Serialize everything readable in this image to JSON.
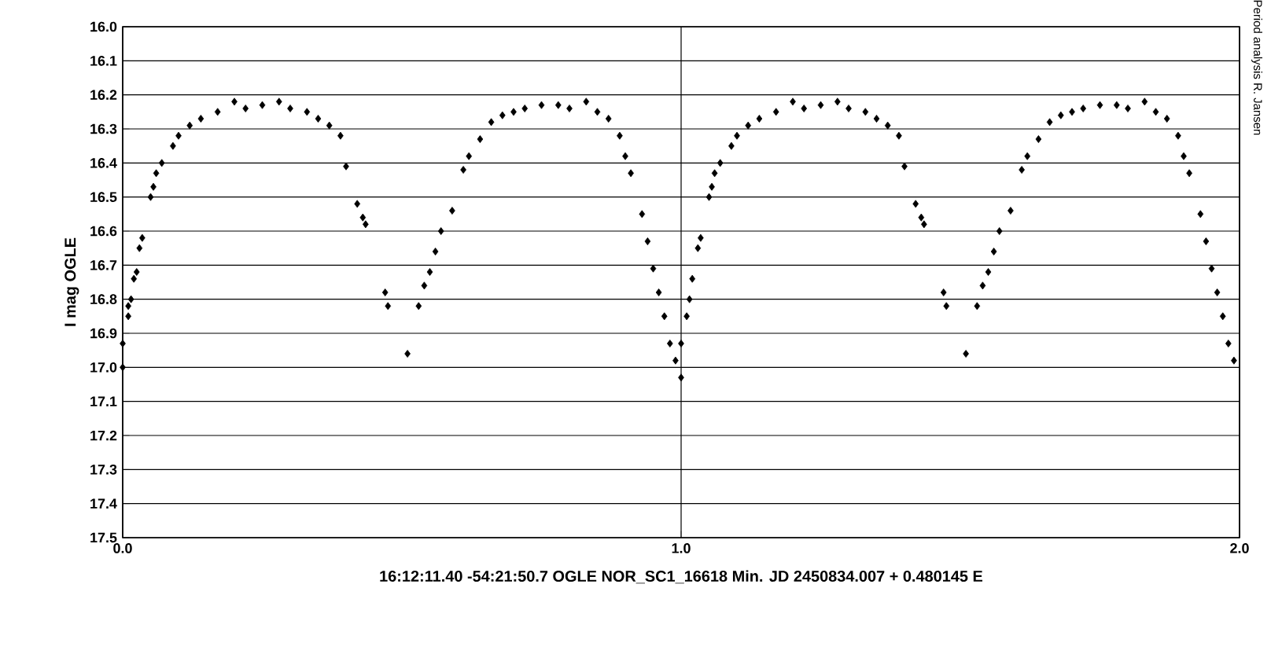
{
  "chart_data": {
    "type": "scatter",
    "xlabel": "16:12:11.40 -54:21:50.7     OGLE NOR_SC1_16618     Min. JD 2450834.007 + 0.480145 E",
    "ylabel": "I mag OGLE",
    "annotations": [
      "Period analysis R. Jansen"
    ],
    "marker": "diamond",
    "grid": true,
    "xlim": [
      0,
      2
    ],
    "xticks": [
      {
        "value": 0,
        "label": "0.0"
      },
      {
        "value": 1,
        "label": "1.0"
      },
      {
        "value": 2,
        "label": "2.0"
      }
    ],
    "ylim": [
      17.5,
      16.0
    ],
    "yticks": [
      {
        "value": 16.0,
        "label": "16.0"
      },
      {
        "value": 16.1,
        "label": "16.1"
      },
      {
        "value": 16.2,
        "label": "16.2"
      },
      {
        "value": 16.3,
        "label": "16.3"
      },
      {
        "value": 16.4,
        "label": "16.4"
      },
      {
        "value": 16.5,
        "label": "16.5"
      },
      {
        "value": 16.6,
        "label": "16.6"
      },
      {
        "value": 16.7,
        "label": "16.7"
      },
      {
        "value": 16.8,
        "label": "16.8"
      },
      {
        "value": 16.9,
        "label": "16.9"
      },
      {
        "value": 17.0,
        "label": "17.0"
      },
      {
        "value": 17.1,
        "label": "17.1"
      },
      {
        "value": 17.2,
        "label": "17.2"
      },
      {
        "value": 17.3,
        "label": "17.3"
      },
      {
        "value": 17.4,
        "label": "17.4"
      },
      {
        "value": 17.5,
        "label": "17.5"
      }
    ],
    "series": [
      {
        "color": "#000000",
        "x": [
          0.0,
          0.0,
          0.01,
          0.01,
          0.015,
          0.02,
          0.025,
          0.03,
          0.035,
          0.05,
          0.055,
          0.06,
          0.07,
          0.09,
          0.1,
          0.12,
          0.14,
          0.17,
          0.2,
          0.22,
          0.25,
          0.28,
          0.3,
          0.33,
          0.35,
          0.37,
          0.39,
          0.4,
          0.42,
          0.43,
          0.435,
          0.47,
          0.475,
          0.51,
          0.53,
          0.54,
          0.55,
          0.56,
          0.57,
          0.59,
          0.61,
          0.62,
          0.64,
          0.66,
          0.68,
          0.7,
          0.72,
          0.75,
          0.78,
          0.8,
          0.83,
          0.85,
          0.87,
          0.89,
          0.9,
          0.91,
          0.93,
          0.94,
          0.95,
          0.96,
          0.97,
          0.98,
          0.99,
          1.0,
          1.0,
          1.01,
          1.015,
          1.02,
          1.03,
          1.035,
          1.05,
          1.055,
          1.06,
          1.07,
          1.09,
          1.1,
          1.12,
          1.14,
          1.17,
          1.2,
          1.22,
          1.25,
          1.28,
          1.3,
          1.33,
          1.35,
          1.37,
          1.39,
          1.4,
          1.42,
          1.43,
          1.435,
          1.47,
          1.475,
          1.51,
          1.53,
          1.54,
          1.55,
          1.56,
          1.57,
          1.59,
          1.61,
          1.62,
          1.64,
          1.66,
          1.68,
          1.7,
          1.72,
          1.75,
          1.78,
          1.8,
          1.83,
          1.85,
          1.87,
          1.89,
          1.9,
          1.91,
          1.93,
          1.94,
          1.95,
          1.96,
          1.97,
          1.98,
          1.99
        ],
        "values": [
          17.0,
          16.93,
          16.85,
          16.82,
          16.8,
          16.74,
          16.72,
          16.65,
          16.62,
          16.5,
          16.47,
          16.43,
          16.4,
          16.35,
          16.32,
          16.29,
          16.27,
          16.25,
          16.22,
          16.24,
          16.23,
          16.22,
          16.24,
          16.25,
          16.27,
          16.29,
          16.32,
          16.41,
          16.52,
          16.56,
          16.58,
          16.78,
          16.82,
          16.96,
          16.82,
          16.76,
          16.72,
          16.66,
          16.6,
          16.54,
          16.42,
          16.38,
          16.33,
          16.28,
          16.26,
          16.25,
          16.24,
          16.23,
          16.23,
          16.24,
          16.22,
          16.25,
          16.27,
          16.32,
          16.38,
          16.43,
          16.55,
          16.63,
          16.71,
          16.78,
          16.85,
          16.93,
          16.98,
          17.03,
          16.93,
          16.85,
          16.8,
          16.74,
          16.65,
          16.62,
          16.5,
          16.47,
          16.43,
          16.4,
          16.35,
          16.32,
          16.29,
          16.27,
          16.25,
          16.22,
          16.24,
          16.23,
          16.22,
          16.24,
          16.25,
          16.27,
          16.29,
          16.32,
          16.41,
          16.52,
          16.56,
          16.58,
          16.78,
          16.82,
          16.96,
          16.82,
          16.76,
          16.72,
          16.66,
          16.6,
          16.54,
          16.42,
          16.38,
          16.33,
          16.28,
          16.26,
          16.25,
          16.24,
          16.23,
          16.23,
          16.24,
          16.22,
          16.25,
          16.27,
          16.32,
          16.38,
          16.43,
          16.55,
          16.63,
          16.71,
          16.78,
          16.85,
          16.93,
          16.98
        ]
      }
    ]
  }
}
